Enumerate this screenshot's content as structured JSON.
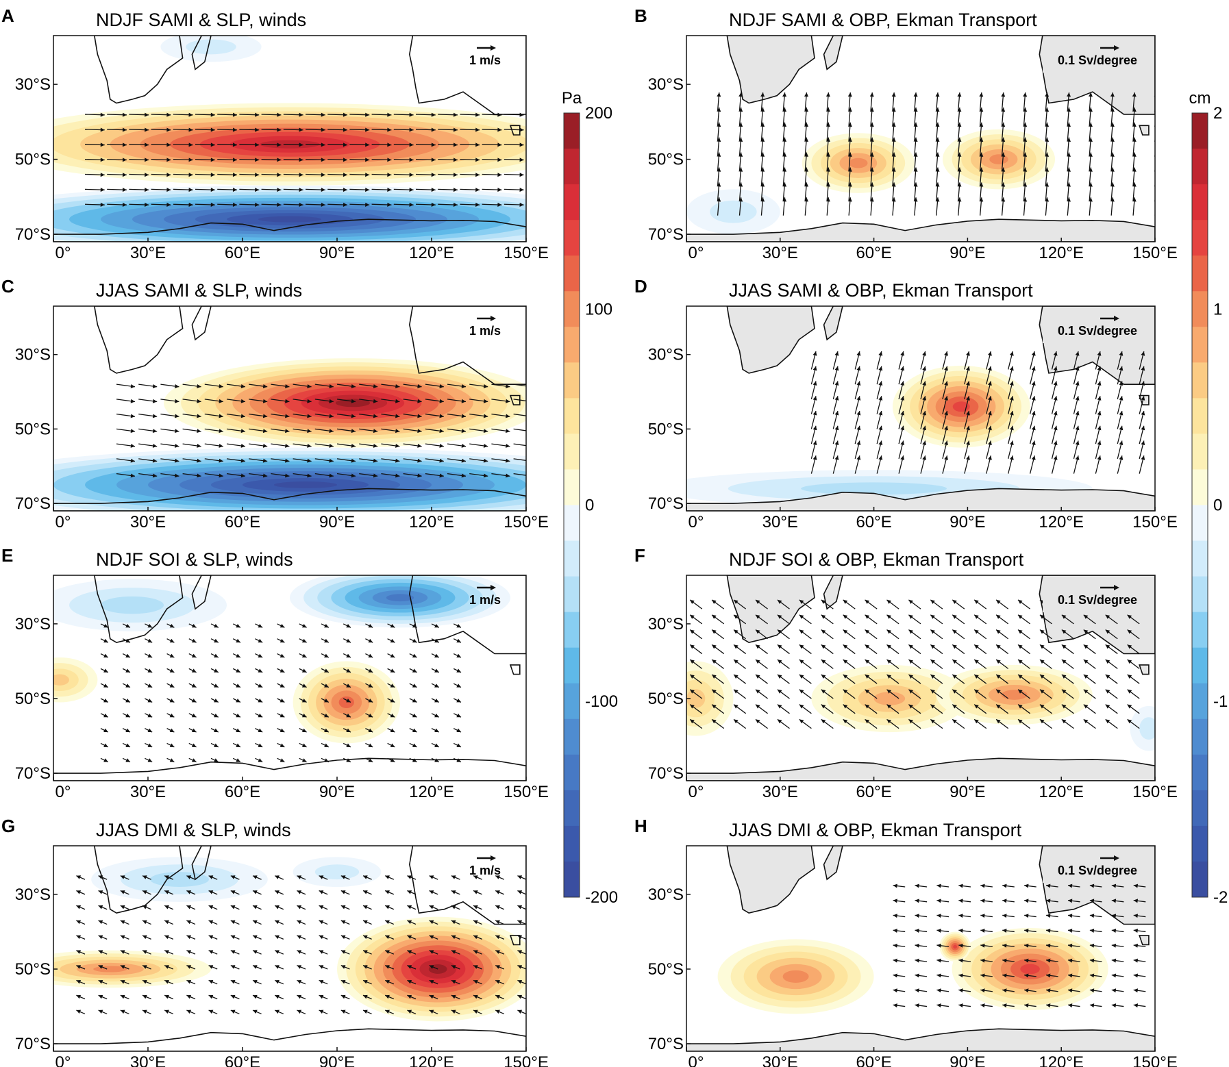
{
  "chart_data": [
    {
      "letter": "A",
      "type": "contour-map",
      "variable": "SLP",
      "title": "NDJF SAMI & SLP, winds",
      "ref_vector": "1 m/s",
      "x_ticks": [
        "0°",
        "30°E",
        "60°E",
        "90°E",
        "120°E",
        "150°E"
      ],
      "y_ticks": [
        "30°S",
        "50°S",
        "70°S"
      ],
      "xlim": [
        0,
        150
      ],
      "ylim": [
        -72,
        -17
      ],
      "features": [
        {
          "kind": "pos",
          "lon": 75,
          "lat": -46,
          "rlon": 95,
          "rlat": 11,
          "peak": 190
        },
        {
          "kind": "neg",
          "lon": 75,
          "lat": -66,
          "rlon": 110,
          "rlat": 9,
          "peak": -200
        },
        {
          "kind": "neg",
          "lon": 50,
          "lat": -20,
          "rlon": 16,
          "rlat": 4,
          "peak": -40
        }
      ],
      "vectors": {
        "lon": [
          10,
          150
        ],
        "lat": [
          -62,
          -38
        ],
        "u": 1.6,
        "v": -0.05
      }
    },
    {
      "letter": "B",
      "type": "contour-map",
      "variable": "OBP",
      "title": "NDJF SAMI & OBP, Ekman Transport",
      "ref_vector": "0.1 Sv/degree",
      "x_ticks": [
        "0°",
        "30°E",
        "60°E",
        "90°E",
        "120°E",
        "150°E"
      ],
      "y_ticks": [
        "30°S",
        "50°S",
        "70°S"
      ],
      "xlim": [
        0,
        150
      ],
      "ylim": [
        -72,
        -17
      ],
      "features": [
        {
          "kind": "pos",
          "lon": 55,
          "lat": -51,
          "rlon": 18,
          "rlat": 8,
          "peak": 1.1
        },
        {
          "kind": "pos",
          "lon": 100,
          "lat": -50,
          "rlon": 18,
          "rlat": 8,
          "peak": 1.0
        },
        {
          "kind": "neg",
          "lon": 15,
          "lat": -64,
          "rlon": 15,
          "rlat": 6,
          "peak": -0.4
        }
      ],
      "vectors": {
        "lon": [
          10,
          150
        ],
        "lat": [
          -65,
          -35
        ],
        "u": 0.1,
        "v": 1.2
      }
    },
    {
      "letter": "C",
      "type": "contour-map",
      "variable": "SLP",
      "title": "JJAS SAMI & SLP, winds",
      "ref_vector": "1 m/s",
      "x_ticks": [
        "0°",
        "30°E",
        "60°E",
        "90°E",
        "120°E",
        "150°E"
      ],
      "y_ticks": [
        "30°S",
        "50°S",
        "70°S"
      ],
      "xlim": [
        0,
        150
      ],
      "ylim": [
        -72,
        -17
      ],
      "features": [
        {
          "kind": "pos",
          "lon": 95,
          "lat": -43,
          "rlon": 60,
          "rlat": 12,
          "peak": 195
        },
        {
          "kind": "neg",
          "lon": 80,
          "lat": -65,
          "rlon": 110,
          "rlat": 10,
          "peak": -200
        }
      ],
      "vectors": {
        "lon": [
          20,
          150
        ],
        "lat": [
          -62,
          -35
        ],
        "u": 1.5,
        "v": -0.2
      }
    },
    {
      "letter": "D",
      "type": "contour-map",
      "variable": "OBP",
      "title": "JJAS SAMI & OBP, Ekman Transport",
      "ref_vector": "0.1 Sv/degree",
      "x_ticks": [
        "0°",
        "30°E",
        "60°E",
        "90°E",
        "120°E",
        "150°E"
      ],
      "y_ticks": [
        "30°S",
        "50°S",
        "70°S"
      ],
      "xlim": [
        0,
        150
      ],
      "ylim": [
        -72,
        -17
      ],
      "features": [
        {
          "kind": "pos",
          "lon": 88,
          "lat": -44,
          "rlon": 22,
          "rlat": 11,
          "peak": 1.5
        },
        {
          "kind": "neg",
          "lon": 60,
          "lat": -66,
          "rlon": 70,
          "rlat": 5,
          "peak": -0.5
        }
      ],
      "vectors": {
        "lon": [
          40,
          150
        ],
        "lat": [
          -62,
          -32
        ],
        "u": 0.3,
        "v": 1.2
      }
    },
    {
      "letter": "E",
      "type": "contour-map",
      "variable": "SLP",
      "title": "NDJF SOI & SLP, winds",
      "ref_vector": "1 m/s",
      "x_ticks": [
        "0°",
        "30°E",
        "60°E",
        "90°E",
        "120°E",
        "150°E"
      ],
      "y_ticks": [
        "30°S",
        "50°S",
        "70°S"
      ],
      "xlim": [
        0,
        150
      ],
      "ylim": [
        -72,
        -17
      ],
      "features": [
        {
          "kind": "pos",
          "lon": 93,
          "lat": -51,
          "rlon": 17,
          "rlat": 11,
          "peak": 135
        },
        {
          "kind": "pos",
          "lon": 2,
          "lat": -45,
          "rlon": 12,
          "rlat": 6,
          "peak": 80
        },
        {
          "kind": "neg",
          "lon": 110,
          "lat": -23,
          "rlon": 35,
          "rlat": 8,
          "peak": -150
        },
        {
          "kind": "neg",
          "lon": 25,
          "lat": -25,
          "rlon": 30,
          "rlat": 7,
          "peak": -60
        }
      ],
      "vectors": {
        "lon": [
          15,
          130
        ],
        "lat": [
          -66,
          -30
        ],
        "u": 0.6,
        "v": -0.3
      }
    },
    {
      "letter": "F",
      "type": "contour-map",
      "variable": "OBP",
      "title": "NDJF SOI & OBP, Ekman Transport",
      "ref_vector": "0.1 Sv/degree",
      "x_ticks": [
        "0°",
        "30°E",
        "60°E",
        "90°E",
        "120°E",
        "150°E"
      ],
      "y_ticks": [
        "30°S",
        "50°S",
        "70°S"
      ],
      "xlim": [
        0,
        150
      ],
      "ylim": [
        -72,
        -17
      ],
      "features": [
        {
          "kind": "pos",
          "lon": 65,
          "lat": -50,
          "rlon": 25,
          "rlat": 9,
          "peak": 0.9
        },
        {
          "kind": "pos",
          "lon": 105,
          "lat": -49,
          "rlon": 25,
          "rlat": 8,
          "peak": 1.0
        },
        {
          "kind": "pos",
          "lon": 3,
          "lat": -50,
          "rlon": 12,
          "rlat": 10,
          "peak": 0.8
        },
        {
          "kind": "neg",
          "lon": 148,
          "lat": -58,
          "rlon": 6,
          "rlat": 6,
          "peak": -0.4
        }
      ],
      "vectors": {
        "lon": [
          5,
          150
        ],
        "lat": [
          -58,
          -25
        ],
        "u": -0.8,
        "v": 0.6
      }
    },
    {
      "letter": "G",
      "type": "contour-map",
      "variable": "SLP",
      "title": "JJAS DMI & SLP, winds",
      "ref_vector": "1 m/s",
      "x_ticks": [
        "0°",
        "30°E",
        "60°E",
        "90°E",
        "120°E",
        "150°E"
      ],
      "y_ticks": [
        "30°S",
        "50°S",
        "70°S"
      ],
      "xlim": [
        0,
        150
      ],
      "ylim": [
        -72,
        -17
      ],
      "features": [
        {
          "kind": "pos",
          "lon": 122,
          "lat": -50,
          "rlon": 32,
          "rlat": 14,
          "peak": 195
        },
        {
          "kind": "pos",
          "lon": 18,
          "lat": -50,
          "rlon": 32,
          "rlat": 5,
          "peak": 100
        },
        {
          "kind": "neg",
          "lon": 40,
          "lat": -26,
          "rlon": 28,
          "rlat": 6,
          "peak": -50
        },
        {
          "kind": "neg",
          "lon": 90,
          "lat": -24,
          "rlon": 14,
          "rlat": 4,
          "peak": -40
        }
      ],
      "vectors": {
        "lon": [
          10,
          150
        ],
        "lat": [
          -62,
          -25
        ],
        "u": -0.7,
        "v": 0.3
      }
    },
    {
      "letter": "H",
      "type": "contour-map",
      "variable": "OBP",
      "title": "JJAS DMI & OBP, Ekman Transport",
      "ref_vector": "0.1 Sv/degree",
      "x_ticks": [
        "0°",
        "30°E",
        "60°E",
        "90°E",
        "120°E",
        "150°E"
      ],
      "y_ticks": [
        "30°S",
        "50°S",
        "70°S"
      ],
      "xlim": [
        0,
        150
      ],
      "ylim": [
        -72,
        -17
      ],
      "features": [
        {
          "kind": "pos",
          "lon": 35,
          "lat": -52,
          "rlon": 25,
          "rlat": 10,
          "peak": 1.0
        },
        {
          "kind": "pos",
          "lon": 110,
          "lat": -50,
          "rlon": 25,
          "rlat": 11,
          "peak": 1.4
        },
        {
          "kind": "pos",
          "lon": 86,
          "lat": -44,
          "rlon": 5,
          "rlat": 4,
          "peak": 1.4
        }
      ],
      "vectors": {
        "lon": [
          70,
          150
        ],
        "lat": [
          -60,
          -25
        ],
        "u": -0.8,
        "v": 0.1
      }
    }
  ],
  "colorbars": [
    {
      "unit": "Pa",
      "ticks": [
        "200",
        "100",
        "0",
        "-100",
        "-200"
      ],
      "range": [
        -200,
        200
      ]
    },
    {
      "unit": "cm",
      "ticks": [
        "2",
        "1",
        "0",
        "-1",
        "-2"
      ],
      "range": [
        -2,
        2
      ]
    }
  ],
  "palette": {
    "pos": [
      "#fdfbd9",
      "#fdf0b6",
      "#fde49d",
      "#fbcb84",
      "#f8aa6e",
      "#f18c5a",
      "#ea6548",
      "#e54440",
      "#da2f38",
      "#c02630",
      "#9a1e26"
    ],
    "neg": [
      "#eef6fd",
      "#d2ecfb",
      "#b4e0f7",
      "#88cef2",
      "#5fb9e8",
      "#57a3dc",
      "#4f8cd0",
      "#4779c4",
      "#4169b8",
      "#3b59ac",
      "#3a4ea0"
    ],
    "land": "#e6e6e6"
  }
}
